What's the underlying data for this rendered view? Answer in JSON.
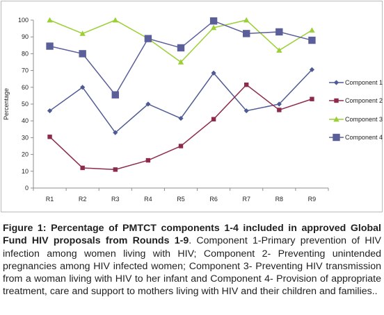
{
  "chart_data": {
    "type": "line",
    "title": "",
    "xlabel": "",
    "ylabel": "Percentage",
    "ylim": [
      0,
      100
    ],
    "yticks": [
      0,
      10,
      20,
      30,
      40,
      50,
      60,
      70,
      80,
      90,
      100
    ],
    "categories": [
      "R1",
      "R2",
      "R3",
      "R4",
      "R5",
      "R6",
      "R7",
      "R8",
      "R9"
    ],
    "grid": false,
    "legend": "right",
    "series": [
      {
        "name": "Component 1",
        "marker": "diamond",
        "color": "#4e5a93",
        "values": [
          46,
          60,
          33,
          50,
          41.5,
          68.5,
          46,
          50,
          70.5
        ]
      },
      {
        "name": "Component 2",
        "marker": "square-small",
        "color": "#8e2b4d",
        "values": [
          30.5,
          12,
          11,
          16.5,
          25,
          41,
          61.5,
          46.5,
          53
        ]
      },
      {
        "name": "Component 3",
        "marker": "triangle",
        "color": "#9ccf35",
        "values": [
          100,
          92,
          100,
          89,
          75,
          95.5,
          100,
          82,
          94
        ]
      },
      {
        "name": "Component 4",
        "marker": "square",
        "color": "#5a5f9a",
        "values": [
          84.5,
          80,
          55.5,
          89,
          83.5,
          99.5,
          92,
          93,
          88
        ]
      }
    ]
  },
  "caption": {
    "bold": "Figure 1: Percentage of PMTCT components 1-4 included in approved Global Fund HIV proposals from Rounds 1-9",
    "text": ". Component 1-Primary prevention of HIV infection among women living with HIV; Component 2- Preventing unintended pregnancies among HIV infected women;  Component 3- Preventing HIV transmission from a woman living with HIV to her infant and Component 4- Provision of appropriate treatment, care and support to mothers living with HIV and their children and families.."
  }
}
